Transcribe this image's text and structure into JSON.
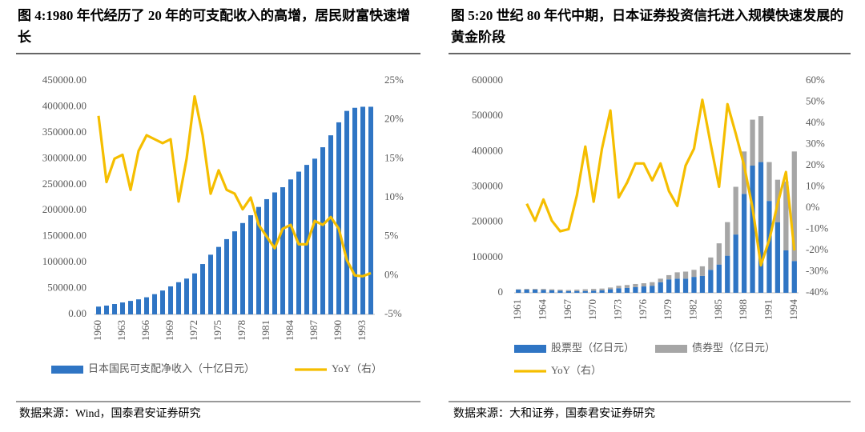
{
  "chart_data": [
    {
      "type": "bar",
      "title": "图 4:1980 年代经历了 20 年的可支配收入的高增，居民财富快速增长",
      "source": "数据来源：Wind，国泰君安证券研究",
      "categories": [
        "1960",
        null,
        null,
        "1963",
        null,
        null,
        "1966",
        null,
        null,
        "1969",
        null,
        null,
        "1972",
        null,
        null,
        "1975",
        null,
        null,
        "1978",
        null,
        null,
        "1981",
        null,
        null,
        "1984",
        null,
        null,
        "1987",
        null,
        null,
        "1990",
        null,
        null,
        "1993",
        null
      ],
      "series": [
        {
          "name": "日本国民可支配净收入（十亿日元）",
          "type": "bar",
          "color": "#2f75c4",
          "values": [
            15000,
            17000,
            20000,
            23000,
            26000,
            29000,
            33000,
            39000,
            46000,
            54000,
            62000,
            69000,
            79000,
            97000,
            115000,
            130000,
            145000,
            160000,
            176000,
            191000,
            207000,
            222000,
            235000,
            245000,
            260000,
            275000,
            288000,
            300000,
            322000,
            345000,
            370000,
            392000,
            398000,
            400000,
            400000
          ]
        },
        {
          "name": "YoY（右）",
          "type": "line",
          "axis": "y2",
          "color": "#f5be00",
          "values": [
            20.5,
            12,
            15,
            15.5,
            11,
            16,
            18,
            17.5,
            17,
            17.5,
            9.5,
            15,
            23,
            18,
            10.5,
            13.5,
            11,
            10.5,
            8.5,
            10,
            6.5,
            5,
            3.5,
            6,
            6.5,
            4,
            4,
            7,
            6.5,
            7.5,
            6,
            2,
            0,
            -0.1,
            0.3
          ]
        }
      ],
      "ylim": [
        0,
        450000
      ],
      "yticks": [
        {
          "value": 0,
          "label": "0.00"
        },
        {
          "value": 50000,
          "label": "50000.00"
        },
        {
          "value": 100000,
          "label": "100000.00"
        },
        {
          "value": 150000,
          "label": "150000.00"
        },
        {
          "value": 200000,
          "label": "200000.00"
        },
        {
          "value": 250000,
          "label": "250000.00"
        },
        {
          "value": 300000,
          "label": "300000.00"
        },
        {
          "value": 350000,
          "label": "350000.00"
        },
        {
          "value": 400000,
          "label": "400000.00"
        },
        {
          "value": 450000,
          "label": "450000.00"
        }
      ],
      "y2lim": [
        -5,
        25
      ],
      "y2ticks": [
        {
          "value": -5,
          "label": "-5%"
        },
        {
          "value": 0,
          "label": "0%"
        },
        {
          "value": 5,
          "label": "5%"
        },
        {
          "value": 10,
          "label": "10%"
        },
        {
          "value": 15,
          "label": "15%"
        },
        {
          "value": 20,
          "label": "20%"
        },
        {
          "value": 25,
          "label": "25%"
        }
      ],
      "grid": false,
      "legend": "bottom"
    },
    {
      "type": "bar",
      "stacked": true,
      "title": "图 5:20 世纪 80 年代中期，日本证券投资信托进入规模快速发展的黄金阶段",
      "source": "数据来源：大和证券，国泰君安证券研究",
      "categories": [
        "1961",
        null,
        null,
        "1964",
        null,
        null,
        "1967",
        null,
        null,
        "1970",
        null,
        null,
        "1973",
        null,
        null,
        "1976",
        null,
        null,
        "1979",
        null,
        null,
        "1982",
        null,
        null,
        "1985",
        null,
        null,
        "1988",
        null,
        null,
        "1991",
        null,
        null,
        "1994"
      ],
      "series": [
        {
          "name": "股票型（亿日元）",
          "type": "bar",
          "color": "#2f75c4",
          "values": [
            9000,
            9000,
            9000,
            8000,
            7000,
            6000,
            5000,
            5000,
            5000,
            6000,
            7000,
            10000,
            13000,
            14000,
            16000,
            18000,
            20000,
            30000,
            38000,
            40000,
            40000,
            45000,
            48000,
            65000,
            80000,
            105000,
            165000,
            280000,
            360000,
            370000,
            260000,
            200000,
            120000,
            90000
          ]
        },
        {
          "name": "债券型（亿日元）",
          "type": "bar",
          "color": "#a6a6a6",
          "values": [
            1000,
            2000,
            2000,
            3000,
            3000,
            3000,
            3000,
            4000,
            5000,
            5000,
            5000,
            5000,
            7000,
            8000,
            9000,
            9000,
            10000,
            10000,
            12000,
            18000,
            20000,
            20000,
            27000,
            35000,
            60000,
            95000,
            135000,
            120000,
            130000,
            130000,
            110000,
            120000,
            195000,
            310000
          ]
        },
        {
          "name": "YoY（右）",
          "type": "line",
          "axis": "y2",
          "color": "#f5be00",
          "values": [
            null,
            2,
            -6,
            4,
            -6,
            -11,
            -10,
            6,
            29,
            3,
            28,
            46,
            5,
            12,
            21,
            21,
            13,
            21,
            8,
            1,
            20,
            28,
            51,
            30,
            10,
            49,
            35,
            20,
            0,
            -27,
            -15,
            2,
            17,
            -20
          ]
        }
      ],
      "ylim": [
        0,
        600000
      ],
      "yticks": [
        0,
        100000,
        200000,
        300000,
        400000,
        500000,
        600000
      ],
      "y2lim": [
        -40,
        60
      ],
      "y2ticks": [
        {
          "value": -40,
          "label": "-40%"
        },
        {
          "value": -30,
          "label": "-30%"
        },
        {
          "value": -20,
          "label": "-20%"
        },
        {
          "value": -10,
          "label": "-10%"
        },
        {
          "value": 0,
          "label": "0%"
        },
        {
          "value": 10,
          "label": "10%"
        },
        {
          "value": 20,
          "label": "20%"
        },
        {
          "value": 30,
          "label": "30%"
        },
        {
          "value": 40,
          "label": "40%"
        },
        {
          "value": 50,
          "label": "50%"
        },
        {
          "value": 60,
          "label": "60%"
        }
      ],
      "grid": false,
      "legend": "bottom"
    }
  ]
}
